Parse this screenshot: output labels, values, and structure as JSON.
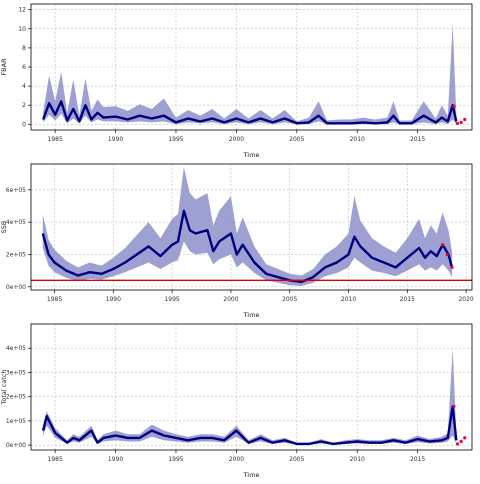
{
  "colors": {
    "band": "#8c8fc8",
    "line": "#000080",
    "points": "#e8003a",
    "ref": "#dd0000",
    "grid": "#bdbdbd",
    "axis": "#000000"
  },
  "chart_data": [
    {
      "type": "area",
      "xlabel": "Time",
      "ylabel": "FBAR",
      "xlim": [
        1983,
        2019.5
      ],
      "ylim": [
        -0.6,
        12.6
      ],
      "xticks": [
        "1985",
        "1990",
        "1995",
        "2000",
        "2005",
        "2010",
        "2015"
      ],
      "yticks": [
        "0",
        "2",
        "4",
        "6",
        "8",
        "10",
        "12"
      ],
      "grid": true,
      "series": [
        {
          "x": [
            1984.0,
            1984.5,
            1985.0,
            1985.5,
            1986.0,
            1986.5,
            1987.0,
            1987.5,
            1988.0,
            1988.5,
            1989.0,
            1990.0,
            1991.0,
            1992.0,
            1993.0,
            1994.0,
            1995.0,
            1996.0,
            1997.0,
            1998.0,
            1999.0,
            2000.0,
            2001.0,
            2002.0,
            2003.0,
            2004.0,
            2005.0,
            2006.0,
            2006.8,
            2007.5,
            2008.5,
            2009.5,
            2010.5,
            2011.5,
            2012.5,
            2013.0,
            2013.5,
            2014.5,
            2015.5,
            2016.5,
            2017.0,
            2017.5,
            2017.9,
            2018.2
          ],
          "values": [
            0.5,
            2.2,
            1.0,
            2.4,
            0.4,
            1.6,
            0.3,
            2.0,
            0.5,
            1.2,
            0.7,
            0.8,
            0.5,
            0.9,
            0.6,
            0.9,
            0.2,
            0.6,
            0.3,
            0.6,
            0.2,
            0.6,
            0.2,
            0.6,
            0.2,
            0.6,
            0.1,
            0.2,
            0.9,
            0.1,
            0.1,
            0.1,
            0.2,
            0.1,
            0.2,
            0.9,
            0.1,
            0.1,
            0.9,
            0.2,
            0.7,
            0.3,
            2.0,
            0.3
          ],
          "lower": [
            0.2,
            1.0,
            0.4,
            1.1,
            0.1,
            0.6,
            0.1,
            0.9,
            0.2,
            0.5,
            0.3,
            0.3,
            0.2,
            0.3,
            0.2,
            0.3,
            0.0,
            0.2,
            0.1,
            0.2,
            0.0,
            0.2,
            0.0,
            0.2,
            0.0,
            0.2,
            0.0,
            0.0,
            0.3,
            0.0,
            0.0,
            0.0,
            0.0,
            0.0,
            0.0,
            0.2,
            0.0,
            0.0,
            0.2,
            0.0,
            0.2,
            0.0,
            0.5,
            0.0
          ],
          "upper": [
            1.2,
            5.1,
            2.4,
            5.5,
            1.2,
            4.7,
            0.9,
            4.8,
            1.4,
            2.6,
            1.8,
            1.9,
            1.4,
            2.1,
            1.6,
            2.7,
            0.7,
            1.5,
            0.9,
            1.6,
            0.6,
            1.6,
            0.6,
            1.5,
            0.6,
            1.5,
            0.3,
            0.7,
            2.4,
            0.4,
            0.5,
            0.5,
            0.7,
            0.5,
            0.7,
            2.4,
            0.4,
            0.4,
            2.4,
            0.6,
            2.0,
            0.9,
            10.5,
            1.0
          ]
        }
      ],
      "recent_points": {
        "x": [
          2018.0,
          2018.3,
          2018.6,
          2018.9
        ],
        "values": [
          1.9,
          0.1,
          0.2,
          0.5
        ]
      }
    },
    {
      "type": "area",
      "xlabel": "Time",
      "ylabel": "SSB",
      "xlim": [
        1983,
        2020.5
      ],
      "ylim": [
        -20000,
        760000
      ],
      "xticks": [
        "1985",
        "1990",
        "1995",
        "2000",
        "2005",
        "2010",
        "2015",
        "2020"
      ],
      "yticks": [
        "0e+00",
        "2e+05",
        "4e+05",
        "6e+05"
      ],
      "grid": true,
      "reference_line": {
        "value": 40000
      },
      "series": [
        {
          "x": [
            1984.0,
            1984.5,
            1985.0,
            1986.0,
            1987.0,
            1988.0,
            1989.0,
            1990.0,
            1991.0,
            1992.0,
            1993.0,
            1994.0,
            1995.0,
            1995.5,
            1996.0,
            1996.5,
            1997.0,
            1998.0,
            1998.5,
            1999.0,
            2000.0,
            2000.5,
            2001.0,
            2002.0,
            2003.0,
            2004.0,
            2005.0,
            2006.0,
            2007.0,
            2008.0,
            2009.0,
            2010.0,
            2010.5,
            2011.0,
            2012.0,
            2013.0,
            2014.0,
            2015.0,
            2016.0,
            2016.5,
            2017.0,
            2017.5,
            2018.0,
            2018.5,
            2018.8
          ],
          "values": [
            330000,
            200000,
            150000,
            100000,
            70000,
            90000,
            80000,
            110000,
            150000,
            200000,
            250000,
            190000,
            260000,
            280000,
            470000,
            350000,
            330000,
            350000,
            220000,
            280000,
            330000,
            200000,
            260000,
            150000,
            80000,
            60000,
            40000,
            30000,
            60000,
            120000,
            150000,
            200000,
            310000,
            250000,
            180000,
            150000,
            120000,
            180000,
            240000,
            180000,
            220000,
            190000,
            260000,
            200000,
            120000
          ],
          "lower": [
            240000,
            130000,
            90000,
            55000,
            35000,
            50000,
            45000,
            65000,
            90000,
            120000,
            150000,
            110000,
            150000,
            165000,
            280000,
            220000,
            200000,
            210000,
            140000,
            170000,
            200000,
            120000,
            150000,
            85000,
            40000,
            25000,
            10000,
            5000,
            25000,
            65000,
            85000,
            120000,
            180000,
            150000,
            100000,
            85000,
            65000,
            100000,
            140000,
            100000,
            120000,
            100000,
            140000,
            100000,
            60000
          ],
          "upper": [
            450000,
            290000,
            230000,
            160000,
            120000,
            150000,
            130000,
            180000,
            240000,
            320000,
            400000,
            300000,
            420000,
            450000,
            740000,
            580000,
            540000,
            580000,
            380000,
            470000,
            560000,
            330000,
            430000,
            250000,
            140000,
            110000,
            80000,
            70000,
            110000,
            200000,
            250000,
            330000,
            560000,
            410000,
            300000,
            250000,
            210000,
            300000,
            420000,
            300000,
            380000,
            330000,
            460000,
            350000,
            220000
          ]
        }
      ],
      "recent_points": {
        "x": [
          2018.0,
          2018.4,
          2018.8
        ],
        "values": [
          260000,
          200000,
          120000
        ]
      }
    },
    {
      "type": "area",
      "xlabel": "Time",
      "ylabel": "Total catch",
      "xlim": [
        1983,
        2019.5
      ],
      "ylim": [
        -20000,
        500000
      ],
      "xticks": [
        "1985",
        "1990",
        "1995",
        "2000",
        "2005",
        "2010",
        "2015"
      ],
      "yticks": [
        "0e+00",
        "1e+05",
        "2e+05",
        "3e+05",
        "4e+05"
      ],
      "grid": true,
      "series": [
        {
          "x": [
            1984.0,
            1984.3,
            1984.6,
            1985.0,
            1986.0,
            1986.5,
            1987.0,
            1988.0,
            1988.5,
            1989.0,
            1990.0,
            1991.0,
            1992.0,
            1993.0,
            1994.0,
            1995.0,
            1996.0,
            1997.0,
            1998.0,
            1999.0,
            2000.0,
            2001.0,
            2002.0,
            2003.0,
            2004.0,
            2005.0,
            2006.0,
            2007.0,
            2008.0,
            2009.0,
            2010.0,
            2011.0,
            2012.0,
            2013.0,
            2014.0,
            2015.0,
            2016.0,
            2017.0,
            2017.5,
            2017.9,
            2018.2
          ],
          "values": [
            60000,
            120000,
            90000,
            50000,
            10000,
            30000,
            20000,
            60000,
            10000,
            30000,
            40000,
            30000,
            30000,
            60000,
            40000,
            30000,
            20000,
            30000,
            30000,
            20000,
            60000,
            10000,
            30000,
            10000,
            20000,
            5000,
            5000,
            15000,
            5000,
            10000,
            15000,
            10000,
            10000,
            20000,
            10000,
            25000,
            15000,
            20000,
            30000,
            160000,
            20000
          ],
          "lower": [
            40000,
            80000,
            60000,
            30000,
            5000,
            15000,
            10000,
            35000,
            5000,
            15000,
            20000,
            15000,
            15000,
            35000,
            20000,
            15000,
            10000,
            15000,
            15000,
            10000,
            35000,
            5000,
            15000,
            5000,
            10000,
            2000,
            2000,
            7000,
            2000,
            5000,
            7000,
            5000,
            5000,
            10000,
            5000,
            12000,
            7000,
            10000,
            15000,
            40000,
            5000
          ],
          "upper": [
            80000,
            140000,
            110000,
            70000,
            20000,
            45000,
            35000,
            80000,
            20000,
            45000,
            60000,
            45000,
            45000,
            85000,
            60000,
            45000,
            35000,
            45000,
            45000,
            35000,
            80000,
            20000,
            45000,
            20000,
            30000,
            10000,
            10000,
            25000,
            10000,
            20000,
            25000,
            20000,
            20000,
            30000,
            20000,
            40000,
            25000,
            35000,
            50000,
            400000,
            50000
          ]
        }
      ],
      "recent_points": {
        "x": [
          2018.0,
          2018.3,
          2018.6,
          2018.9
        ],
        "values": [
          160000,
          5000,
          15000,
          30000
        ]
      }
    }
  ]
}
